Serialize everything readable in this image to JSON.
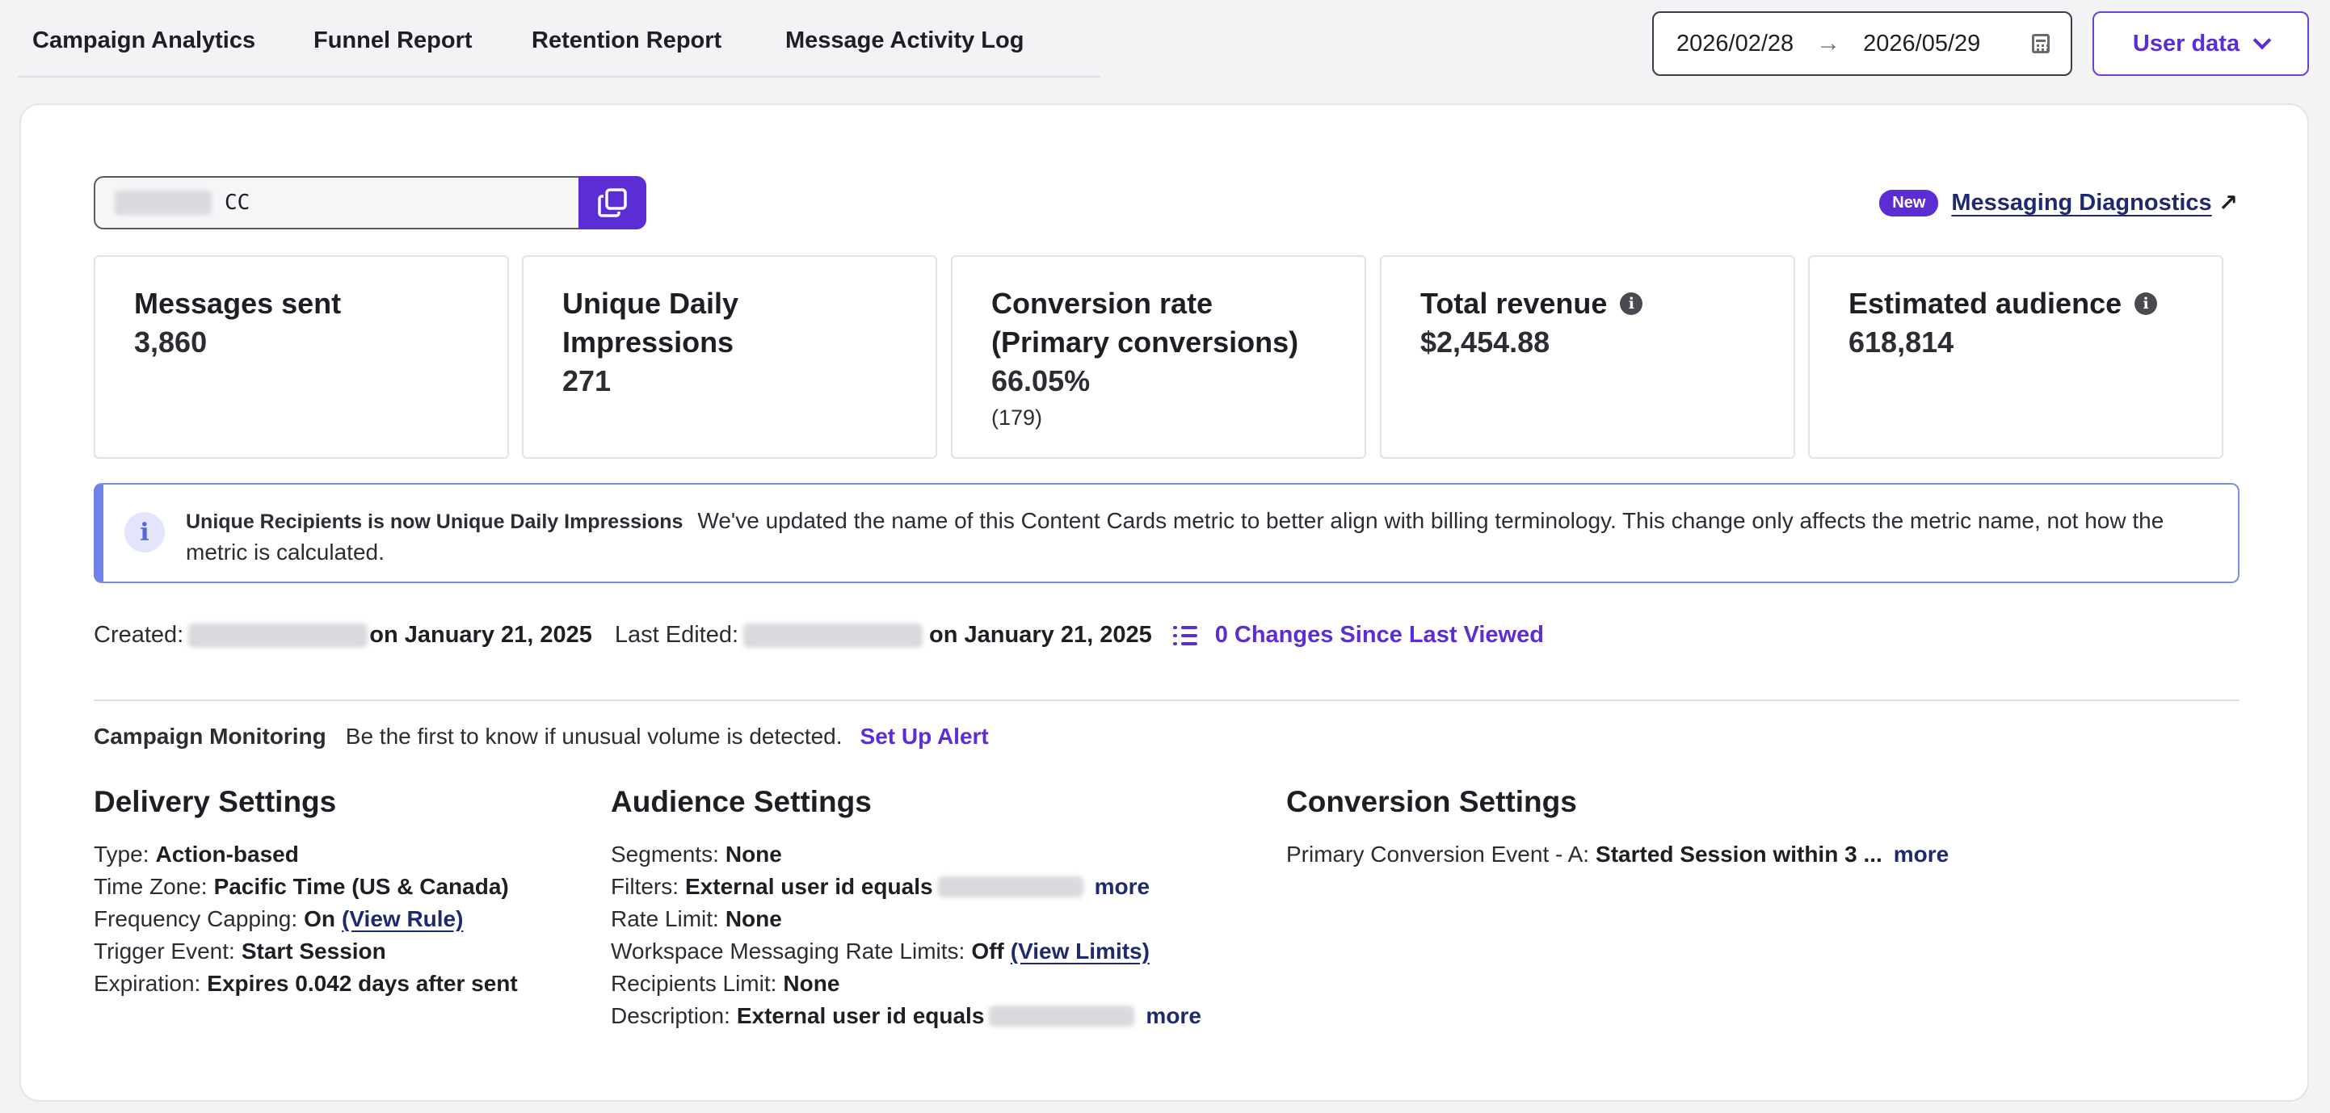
{
  "nav": {
    "tabs": [
      {
        "label": "Campaign Analytics"
      },
      {
        "label": "Funnel Report"
      },
      {
        "label": "Retention Report"
      },
      {
        "label": "Message Activity Log"
      }
    ]
  },
  "date_range": {
    "start": "2026/02/28",
    "end": "2026/05/29",
    "arrow": "→"
  },
  "user_data_button": {
    "label": "User data"
  },
  "campaign_id": {
    "suffix": "CC"
  },
  "diagnostics": {
    "badge": "New",
    "label": "Messaging Diagnostics",
    "arrow": "↗"
  },
  "metrics": [
    {
      "label": "Messages sent",
      "value": "3,860",
      "sub": ""
    },
    {
      "label": "Unique Daily Impressions",
      "value": "271",
      "sub": ""
    },
    {
      "label": "Conversion rate (Primary conversions)",
      "value": "66.05%",
      "sub": "(179)"
    },
    {
      "label": "Total revenue",
      "value": "$2,454.88",
      "sub": ""
    },
    {
      "label": "Estimated audience",
      "value": "618,814",
      "sub": ""
    }
  ],
  "banner": {
    "title": "Unique Recipients is now Unique Daily Impressions",
    "text": "We've updated the name of this Content Cards metric to better align with billing terminology. This change only affects the metric name, not how the metric is calculated."
  },
  "created": {
    "created_label": "Created:",
    "created_date": "on January 21, 2025",
    "edited_label": "Last Edited:",
    "edited_date": "on January 21, 2025",
    "changes_link": "0 Changes Since Last Viewed"
  },
  "monitoring": {
    "title": "Campaign Monitoring",
    "text": "Be the first to know if unusual volume is detected.",
    "link": "Set Up Alert"
  },
  "delivery": {
    "title": "Delivery Settings",
    "type_k": "Type:",
    "type_v": "Action-based",
    "tz_k": "Time Zone:",
    "tz_v": "Pacific Time (US & Canada)",
    "freq_k": "Frequency Capping:",
    "freq_v": "On",
    "freq_link": "(View Rule)",
    "trigger_k": "Trigger Event:",
    "trigger_v": "Start Session",
    "exp_k": "Expiration:",
    "exp_v": "Expires 0.042 days after sent"
  },
  "audience": {
    "title": "Audience Settings",
    "seg_k": "Segments:",
    "seg_v": "None",
    "filt_k": "Filters:",
    "filt_v": "External user id equals",
    "filt_more": "more",
    "rate_k": "Rate Limit:",
    "rate_v": "None",
    "ws_k": "Workspace Messaging Rate Limits:",
    "ws_v": "Off",
    "ws_link": "(View Limits)",
    "rec_k": "Recipients Limit:",
    "rec_v": "None",
    "desc_k": "Description:",
    "desc_v": "External user id equals",
    "desc_more": "more"
  },
  "conversion": {
    "title": "Conversion Settings",
    "event_k": "Primary Conversion Event - A:",
    "event_v": "Started Session within 3 ...",
    "event_more": "more"
  }
}
